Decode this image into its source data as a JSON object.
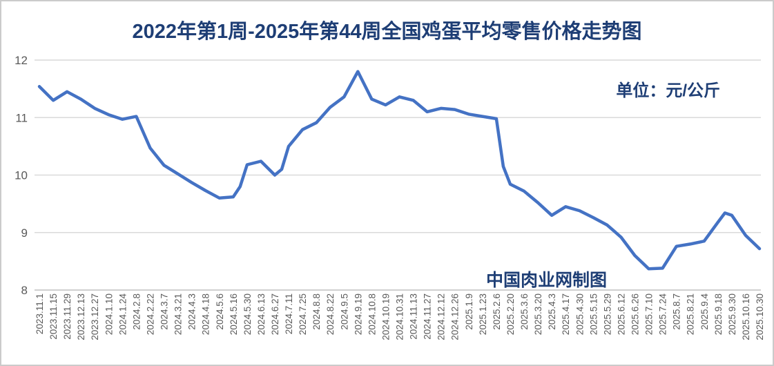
{
  "title": "2022年第1周-2025年第44周全国鸡蛋平均零售价格走势图",
  "unit_label": "单位：元/公斤",
  "watermark": "中国肉业网制图",
  "colors": {
    "line": "#4472c4",
    "heading_text": "#1e3e75",
    "gridline": "#d9d9d9",
    "axis_line": "#bfbfbf",
    "tick_text": "#595959"
  },
  "chart_data": {
    "type": "line",
    "title": "2022年第1周-2025年第44周全国鸡蛋平均零售价格走势图",
    "unit": "元/公斤",
    "ylim": [
      8,
      12
    ],
    "y_ticks": [
      12,
      11,
      10,
      9,
      8
    ],
    "grid": "horizontal",
    "legend": "none",
    "categories": [
      "2023.11.1",
      "2023.11.15",
      "2023.11.29",
      "2023.12.13",
      "2023.12.27",
      "2024.1.10",
      "2024.1.24",
      "2024.2.8",
      "2024.2.22",
      "2024.3.7",
      "2024.3.21",
      "2024.4.3",
      "2024.4.18",
      "2024.5.6",
      "2024.5.16",
      "2024.5.30",
      "2024.6.13",
      "2024.6.27",
      "2024.7.11",
      "2024.7.25",
      "2024.8.8",
      "2024.8.22",
      "2024.9.5",
      "2024.9.19",
      "2024.10.8",
      "2024.10.19",
      "2024.10.31",
      "2024.11.13",
      "2024.11.27",
      "2024.12.12",
      "2024.12.26",
      "2025.1.9",
      "2025.1.23",
      "2025.2.6",
      "2025.2.20",
      "2025.3.6",
      "2025.3.20",
      "2025.4.3",
      "2025.4.17",
      "2025.4.30",
      "2025.5.15",
      "2025.5.29",
      "2025.6.12",
      "2025.6.26",
      "2025.7.10",
      "2025.7.24",
      "2025.8.7",
      "2025.8.21",
      "2025.9.4",
      "2025.9.18",
      "2025.9.30",
      "2025.10.16",
      "2025.10.30"
    ],
    "values": [
      11.54,
      11.3,
      11.45,
      11.32,
      11.16,
      11.05,
      10.97,
      11.02,
      10.47,
      10.17,
      10.02,
      9.87,
      9.73,
      9.6,
      9.62,
      10.18,
      10.24,
      10.0,
      10.5,
      10.79,
      10.91,
      11.18,
      11.36,
      11.8,
      11.32,
      11.22,
      11.36,
      11.3,
      11.1,
      11.16,
      11.14,
      11.06,
      11.02,
      10.98,
      9.84,
      9.72,
      9.52,
      9.3,
      9.45,
      9.38,
      9.26,
      9.13,
      8.92,
      8.6,
      8.37,
      8.38,
      8.76,
      8.8,
      8.85,
      9.18,
      9.3,
      8.95,
      8.72
    ],
    "intermediate_weekly_points": [
      {
        "after_index": 14,
        "value": 9.8
      },
      {
        "after_index": 17,
        "value": 10.1
      },
      {
        "after_index": 33,
        "value": 10.15
      },
      {
        "after_index": 49,
        "value": 9.34
      }
    ]
  }
}
